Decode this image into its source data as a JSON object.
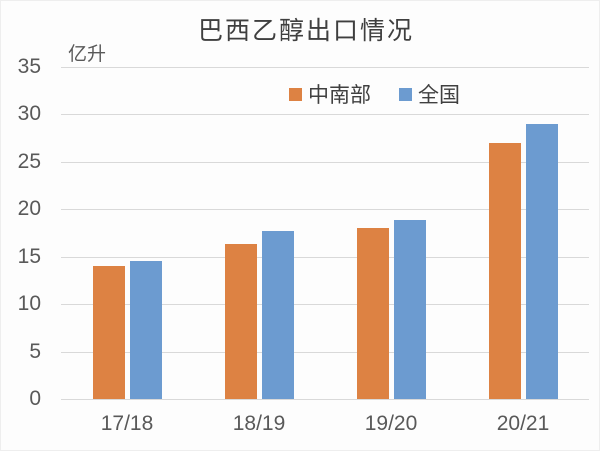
{
  "title": "巴西乙醇出口情况",
  "y_unit_label": "亿升",
  "colors": {
    "series_central_south": "#dd8243",
    "series_national": "#6c9bd0",
    "gridline": "#d9d9d9",
    "tick_text": "#595959",
    "title_text": "#3f3f3f"
  },
  "chart_data": {
    "type": "bar",
    "title": "巴西乙醇出口情况",
    "xlabel": "",
    "ylabel": "亿升",
    "categories": [
      "17/18",
      "18/19",
      "19/20",
      "20/21"
    ],
    "series": [
      {
        "name": "中南部",
        "color": "#dd8243",
        "values": [
          14.0,
          16.3,
          18.0,
          27.0
        ]
      },
      {
        "name": "全国",
        "color": "#6c9bd0",
        "values": [
          14.5,
          17.7,
          18.8,
          29.0
        ]
      }
    ],
    "ylim": [
      0,
      35
    ],
    "ytick_step": 5,
    "grid": true,
    "legend_position": "top-center"
  }
}
